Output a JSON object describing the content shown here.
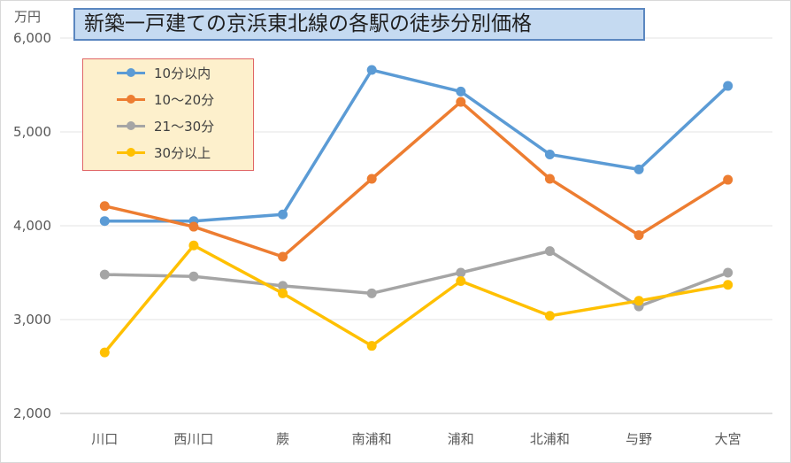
{
  "chart_data": {
    "type": "line",
    "title": "新築一戸建ての京浜東北線の各駅の徒歩分別価格",
    "unit_label": "万円",
    "xlabel": "",
    "ylabel": "",
    "ylim": [
      2000,
      6000
    ],
    "yticks": [
      "2,000",
      "3,000",
      "4,000",
      "5,000",
      "6,000"
    ],
    "ytick_values": [
      2000,
      3000,
      4000,
      5000,
      6000
    ],
    "grid": true,
    "legend_position": "top-left",
    "categories": [
      "川口",
      "西川口",
      "蕨",
      "南浦和",
      "浦和",
      "北浦和",
      "与野",
      "大宮"
    ],
    "series": [
      {
        "name": "10分以内",
        "color": "#5b9bd5",
        "values": [
          4050,
          4050,
          4120,
          5660,
          5430,
          4760,
          4600,
          5490
        ]
      },
      {
        "name": "10～20分",
        "color": "#ed7d31",
        "values": [
          4210,
          3990,
          3670,
          4500,
          5320,
          4500,
          3900,
          4490
        ]
      },
      {
        "name": "21～30分",
        "color": "#a5a5a5",
        "values": [
          3480,
          3460,
          3360,
          3280,
          3500,
          3730,
          3140,
          3500
        ]
      },
      {
        "name": "30分以上",
        "color": "#ffc000",
        "values": [
          2650,
          3790,
          3280,
          2720,
          3410,
          3040,
          3200,
          3370
        ]
      }
    ]
  }
}
